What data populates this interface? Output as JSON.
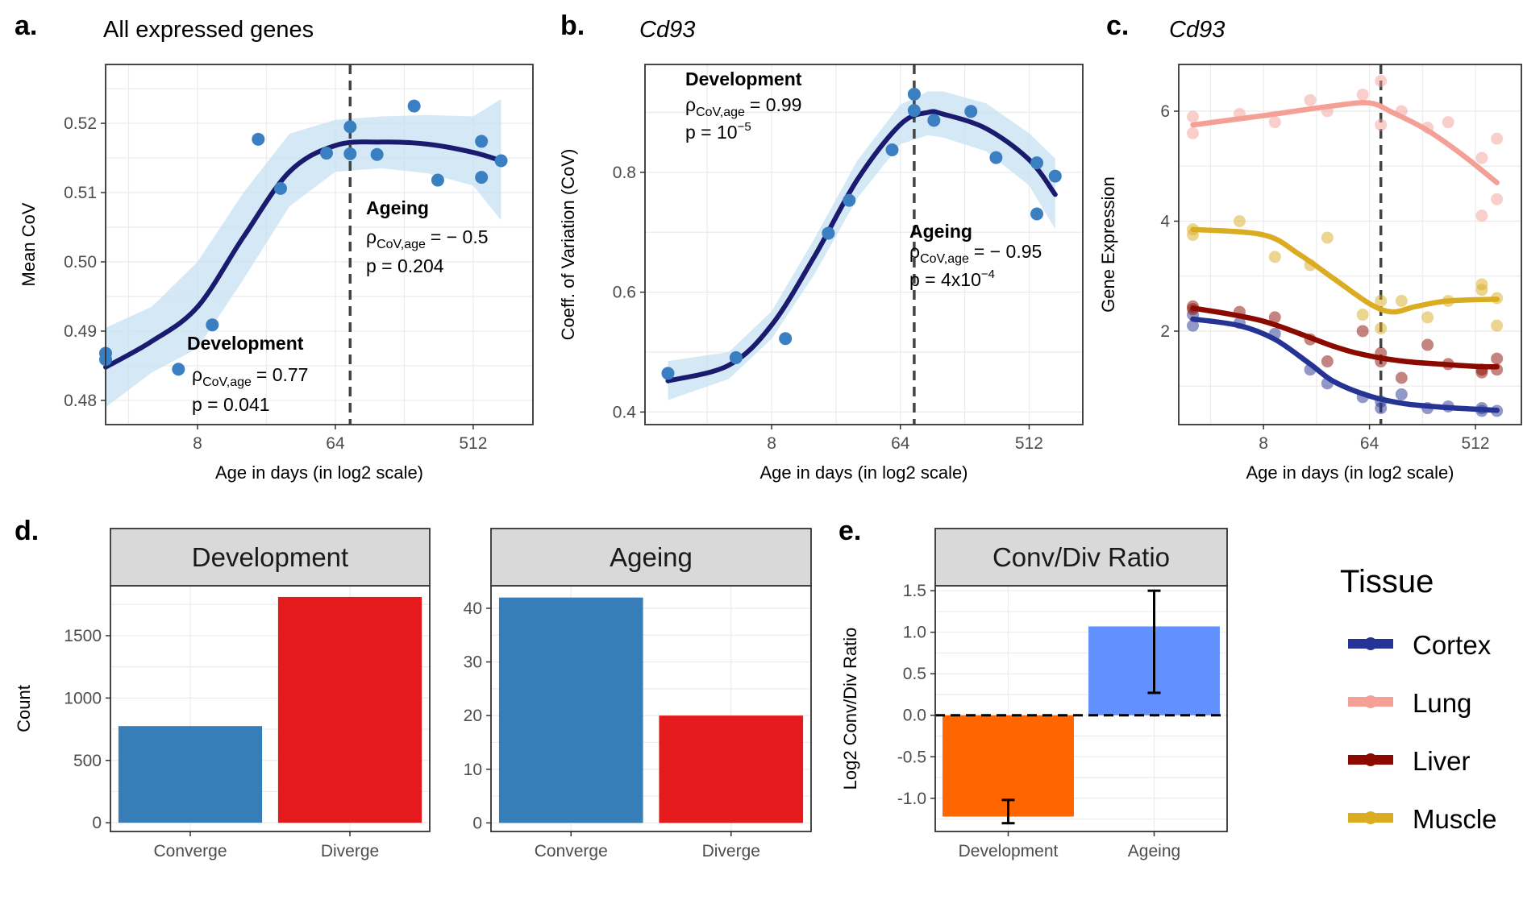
{
  "panels": {
    "a": {
      "letter": "a.",
      "title": "All expressed genes"
    },
    "b": {
      "letter": "b.",
      "title": "Cd93"
    },
    "c": {
      "letter": "c.",
      "title": "Cd93"
    },
    "d": {
      "letter": "d."
    },
    "e": {
      "letter": "e."
    }
  },
  "annotations": {
    "a": {
      "dev_head": "Development",
      "dev_rho": "= 0.77",
      "dev_p": "p = 0.041",
      "age_head": "Ageing",
      "age_rho": "= − 0.5",
      "age_p": "p = 0.204"
    },
    "b": {
      "dev_head": "Development",
      "dev_rho": "= 0.99",
      "dev_p": "p = 10",
      "dev_p_exp": "−5",
      "age_head": "Ageing",
      "age_rho": "= − 0.95",
      "age_p": "p = 4x10",
      "age_p_exp": "−4"
    },
    "rho": "ρ",
    "rho_sub": "CoV,age"
  },
  "legend": {
    "title": "Tissue",
    "items": [
      {
        "label": "Cortex",
        "color": "#253494"
      },
      {
        "label": "Lung",
        "color": "#f4a097"
      },
      {
        "label": "Liver",
        "color": "#8b0a00"
      },
      {
        "label": "Muscle",
        "color": "#d9ac22"
      }
    ]
  },
  "chart_data": [
    {
      "id": "a",
      "type": "scatter",
      "title": "All expressed genes",
      "xlabel": "Age in days (in log2 scale)",
      "ylabel": "Mean CoV",
      "x_scale": "log2",
      "x_ticks": [
        8,
        64,
        512
      ],
      "x_tick_labels": [
        "8",
        "64",
        "512"
      ],
      "ylim": [
        0.4765,
        0.5285
      ],
      "y_ticks": [
        0.48,
        0.49,
        0.5,
        0.51,
        0.52
      ],
      "y_tick_labels": [
        "0.48",
        "0.49",
        "0.50",
        "0.51",
        "0.52"
      ],
      "vline_x": 80,
      "point_color": "#3a7fc1",
      "fit_color": "#1a1a6e",
      "band_color": "#c6e2f1",
      "points": [
        [
          2,
          0.4868
        ],
        [
          2,
          0.4859
        ],
        [
          6,
          0.4845
        ],
        [
          10,
          0.4909
        ],
        [
          20,
          0.5177
        ],
        [
          28,
          0.5106
        ],
        [
          56,
          0.5157
        ],
        [
          80,
          0.5195
        ],
        [
          80,
          0.5156
        ],
        [
          120,
          0.5155
        ],
        [
          210,
          0.5225
        ],
        [
          300,
          0.5118
        ],
        [
          580,
          0.5174
        ],
        [
          580,
          0.5122
        ],
        [
          780,
          0.5146
        ]
      ],
      "fit": [
        [
          2,
          0.4848
        ],
        [
          4,
          0.4885
        ],
        [
          8,
          0.4935
        ],
        [
          16,
          0.5036
        ],
        [
          32,
          0.513
        ],
        [
          64,
          0.5168
        ],
        [
          128,
          0.5173
        ],
        [
          256,
          0.517
        ],
        [
          512,
          0.5158
        ],
        [
          780,
          0.5146
        ]
      ],
      "band_upper": [
        [
          2,
          0.4905
        ],
        [
          4,
          0.4935
        ],
        [
          8,
          0.5
        ],
        [
          16,
          0.51
        ],
        [
          32,
          0.5185
        ],
        [
          64,
          0.5205
        ],
        [
          128,
          0.521
        ],
        [
          256,
          0.5212
        ],
        [
          512,
          0.521
        ],
        [
          780,
          0.5235
        ]
      ],
      "band_lower": [
        [
          780,
          0.506
        ],
        [
          512,
          0.511
        ],
        [
          256,
          0.5128
        ],
        [
          128,
          0.5135
        ],
        [
          64,
          0.513
        ],
        [
          32,
          0.508
        ],
        [
          16,
          0.4975
        ],
        [
          8,
          0.4875
        ],
        [
          4,
          0.484
        ],
        [
          2,
          0.479
        ]
      ]
    },
    {
      "id": "b",
      "type": "scatter",
      "title": "Cd93",
      "xlabel": "Age in days (in log2 scale)",
      "ylabel": "Coeff. of Variation (CoV)",
      "x_scale": "log2",
      "x_ticks": [
        8,
        64,
        512
      ],
      "x_tick_labels": [
        "8",
        "64",
        "512"
      ],
      "ylim": [
        0.379,
        0.98
      ],
      "y_ticks": [
        0.4,
        0.6,
        0.8
      ],
      "y_tick_labels": [
        "0.4",
        "0.6",
        "0.8"
      ],
      "vline_x": 80,
      "point_color": "#3a7fc1",
      "fit_color": "#1a1a6e",
      "band_color": "#c6e2f1",
      "points": [
        [
          1.5,
          0.4645
        ],
        [
          4.5,
          0.4907
        ],
        [
          10,
          0.5226
        ],
        [
          20,
          0.6984
        ],
        [
          28,
          0.7533
        ],
        [
          56,
          0.8375
        ],
        [
          80,
          0.9304
        ],
        [
          80,
          0.9032
        ],
        [
          110,
          0.8867
        ],
        [
          200,
          0.9016
        ],
        [
          300,
          0.8246
        ],
        [
          580,
          0.8158
        ],
        [
          580,
          0.7306
        ],
        [
          780,
          0.7937
        ]
      ],
      "fit": [
        [
          1.5,
          0.452
        ],
        [
          4,
          0.478
        ],
        [
          8,
          0.545
        ],
        [
          16,
          0.66
        ],
        [
          32,
          0.788
        ],
        [
          64,
          0.88
        ],
        [
          100,
          0.9
        ],
        [
          128,
          0.897
        ],
        [
          256,
          0.873
        ],
        [
          512,
          0.821
        ],
        [
          780,
          0.763
        ]
      ],
      "band_upper": [
        [
          1.5,
          0.485
        ],
        [
          4,
          0.5
        ],
        [
          8,
          0.568
        ],
        [
          16,
          0.69
        ],
        [
          32,
          0.82
        ],
        [
          64,
          0.913
        ],
        [
          100,
          0.935
        ],
        [
          128,
          0.935
        ],
        [
          256,
          0.915
        ],
        [
          512,
          0.865
        ],
        [
          780,
          0.823
        ]
      ],
      "band_lower": [
        [
          780,
          0.705
        ],
        [
          512,
          0.778
        ],
        [
          256,
          0.835
        ],
        [
          128,
          0.858
        ],
        [
          100,
          0.862
        ],
        [
          64,
          0.847
        ],
        [
          32,
          0.757
        ],
        [
          16,
          0.63
        ],
        [
          8,
          0.522
        ],
        [
          4,
          0.455
        ],
        [
          1.5,
          0.42
        ]
      ]
    },
    {
      "id": "c",
      "type": "scatter",
      "title": "Cd93",
      "xlabel": "Age in days (in log2 scale)",
      "ylabel": "Gene Expression",
      "x_scale": "log2",
      "x_ticks": [
        8,
        64,
        512
      ],
      "x_tick_labels": [
        "8",
        "64",
        "512"
      ],
      "ylim": [
        0.3,
        6.85
      ],
      "y_ticks": [
        2,
        4,
        6
      ],
      "y_tick_labels": [
        "2",
        "4",
        "6"
      ],
      "vline_x": 80,
      "series": [
        {
          "name": "Cortex",
          "color": "#253494",
          "points": [
            [
              2,
              2.1
            ],
            [
              2,
              2.3
            ],
            [
              5,
              2.15
            ],
            [
              10,
              1.95
            ],
            [
              20,
              1.3
            ],
            [
              28,
              1.05
            ],
            [
              56,
              0.8
            ],
            [
              80,
              0.72
            ],
            [
              80,
              0.6
            ],
            [
              120,
              0.85
            ],
            [
              200,
              0.6
            ],
            [
              300,
              0.63
            ],
            [
              580,
              0.55
            ],
            [
              580,
              0.6
            ],
            [
              780,
              0.55
            ]
          ],
          "fit": [
            [
              2,
              2.22
            ],
            [
              5,
              2.1
            ],
            [
              10,
              1.85
            ],
            [
              20,
              1.4
            ],
            [
              32,
              1.08
            ],
            [
              64,
              0.82
            ],
            [
              128,
              0.68
            ],
            [
              256,
              0.62
            ],
            [
              512,
              0.58
            ],
            [
              780,
              0.56
            ]
          ]
        },
        {
          "name": "Lung",
          "color": "#f4a097",
          "points": [
            [
              2,
              5.6
            ],
            [
              2,
              5.9
            ],
            [
              5,
              5.95
            ],
            [
              10,
              5.8
            ],
            [
              20,
              6.2
            ],
            [
              28,
              6.0
            ],
            [
              56,
              6.3
            ],
            [
              80,
              6.55
            ],
            [
              80,
              5.75
            ],
            [
              120,
              6.0
            ],
            [
              200,
              5.7
            ],
            [
              300,
              5.8
            ],
            [
              580,
              5.15
            ],
            [
              580,
              4.1
            ],
            [
              780,
              5.5
            ],
            [
              780,
              4.4
            ]
          ],
          "fit": [
            [
              2,
              5.75
            ],
            [
              8,
              5.92
            ],
            [
              32,
              6.1
            ],
            [
              64,
              6.15
            ],
            [
              100,
              5.98
            ],
            [
              200,
              5.65
            ],
            [
              400,
              5.2
            ],
            [
              780,
              4.7
            ]
          ]
        },
        {
          "name": "Liver",
          "color": "#8b0a00",
          "points": [
            [
              2,
              2.4
            ],
            [
              2,
              2.45
            ],
            [
              5,
              2.35
            ],
            [
              10,
              2.25
            ],
            [
              20,
              1.85
            ],
            [
              28,
              1.45
            ],
            [
              56,
              2.0
            ],
            [
              80,
              1.6
            ],
            [
              80,
              1.45
            ],
            [
              120,
              1.15
            ],
            [
              200,
              1.75
            ],
            [
              300,
              1.4
            ],
            [
              580,
              1.25
            ],
            [
              580,
              1.3
            ],
            [
              780,
              1.5
            ],
            [
              780,
              1.3
            ]
          ],
          "fit": [
            [
              2,
              2.42
            ],
            [
              8,
              2.18
            ],
            [
              32,
              1.72
            ],
            [
              64,
              1.55
            ],
            [
              128,
              1.45
            ],
            [
              256,
              1.4
            ],
            [
              512,
              1.36
            ],
            [
              780,
              1.35
            ]
          ]
        },
        {
          "name": "Muscle",
          "color": "#d9ac22",
          "points": [
            [
              2,
              3.75
            ],
            [
              2,
              3.85
            ],
            [
              5,
              4.0
            ],
            [
              10,
              3.35
            ],
            [
              20,
              3.2
            ],
            [
              28,
              3.7
            ],
            [
              56,
              2.3
            ],
            [
              80,
              2.55
            ],
            [
              80,
              2.05
            ],
            [
              120,
              2.55
            ],
            [
              200,
              2.25
            ],
            [
              300,
              2.55
            ],
            [
              580,
              2.75
            ],
            [
              580,
              2.85
            ],
            [
              780,
              2.6
            ],
            [
              780,
              2.1
            ]
          ],
          "fit": [
            [
              2,
              3.85
            ],
            [
              8,
              3.75
            ],
            [
              16,
              3.4
            ],
            [
              32,
              2.95
            ],
            [
              64,
              2.5
            ],
            [
              100,
              2.35
            ],
            [
              160,
              2.45
            ],
            [
              300,
              2.55
            ],
            [
              780,
              2.58
            ]
          ]
        }
      ]
    },
    {
      "id": "d-dev",
      "type": "bar",
      "title": "Development",
      "ylabel": "Count",
      "categories": [
        "Converge",
        "Diverge"
      ],
      "values": [
        775,
        1810
      ],
      "colors": [
        "#377eb8",
        "#e41a1c"
      ],
      "ylim": [
        -70,
        1900
      ],
      "y_ticks": [
        0,
        500,
        1000,
        1500
      ],
      "y_tick_labels": [
        "0",
        "500",
        "1000",
        "1500"
      ]
    },
    {
      "id": "d-age",
      "type": "bar",
      "title": "Ageing",
      "categories": [
        "Converge",
        "Diverge"
      ],
      "values": [
        42,
        20
      ],
      "colors": [
        "#377eb8",
        "#e41a1c"
      ],
      "ylim": [
        -1.6,
        44.2
      ],
      "y_ticks": [
        0,
        10,
        20,
        30,
        40
      ],
      "y_tick_labels": [
        "0",
        "10",
        "20",
        "30",
        "40"
      ]
    },
    {
      "id": "e",
      "type": "bar",
      "title": "Conv/Div Ratio",
      "ylabel": "Log2 Conv/Div Ratio",
      "categories": [
        "Development",
        "Ageing"
      ],
      "values": [
        -1.22,
        1.07
      ],
      "error_low": [
        -1.3,
        0.27
      ],
      "error_high": [
        -1.02,
        1.5
      ],
      "colors": [
        "#ff6600",
        "#6390ff"
      ],
      "ylim": [
        -1.4,
        1.56
      ],
      "y_ticks": [
        -1.0,
        -0.5,
        0.0,
        0.5,
        1.0,
        1.5
      ],
      "y_tick_labels": [
        "-1.0",
        "-0.5",
        "0.0",
        "0.5",
        "1.0",
        "1.5"
      ]
    }
  ]
}
